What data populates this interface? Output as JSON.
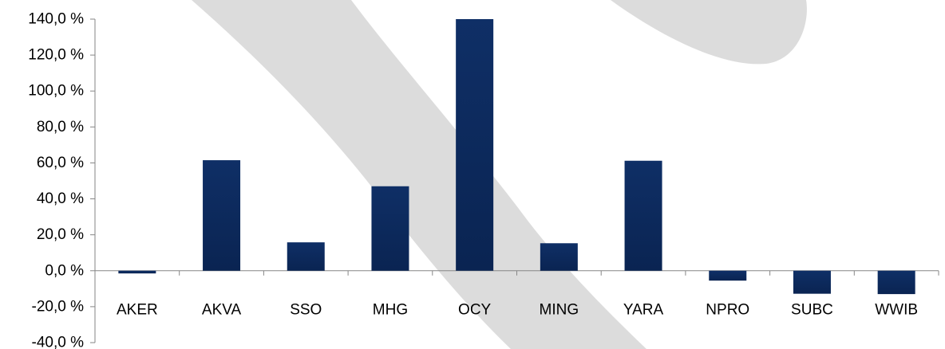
{
  "chart_data": {
    "type": "bar",
    "categories": [
      "AKER",
      "AKVA",
      "SSO",
      "MHG",
      "OCY",
      "MING",
      "YARA",
      "NPRO",
      "SUBC",
      "WWIB"
    ],
    "series": [
      {
        "values": [
          -1.5,
          61.5,
          15.8,
          47.0,
          140.0,
          15.3,
          61.2,
          -5.5,
          -12.8,
          -13.0
        ]
      }
    ],
    "yticks": [
      "140,0 %",
      "120,0 %",
      "100,0 %",
      "80,0 %",
      "60,0 %",
      "40,0 %",
      "20,0 %",
      "0,0 %",
      "-20,0 %",
      "-40,0 %"
    ],
    "ylim": [
      -40,
      140
    ],
    "grid": false,
    "title": "",
    "xlabel": "",
    "ylabel": ""
  },
  "colors": {
    "bar_dark": "#0b2a5c",
    "bar_light": "#14336b",
    "axis": "#868686",
    "watermark": "#dcdcdc",
    "background": "#ffffff"
  }
}
